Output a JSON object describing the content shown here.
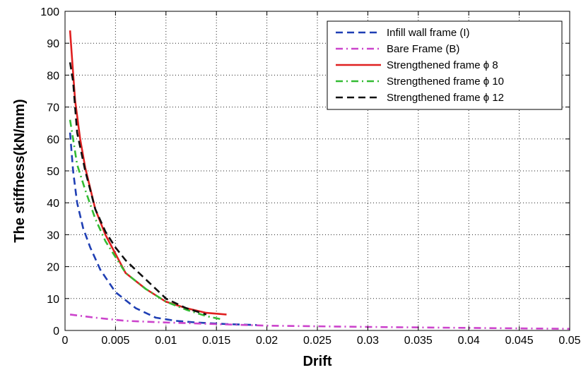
{
  "chart_data": {
    "type": "line",
    "title": "",
    "xlabel": "Drift",
    "ylabel": "The stiffness(kN/mm)",
    "xlim": [
      0,
      0.05
    ],
    "ylim": [
      0,
      100
    ],
    "x_ticks": [
      "0",
      "0.005",
      "0.01",
      "0.015",
      "0.02",
      "0.025",
      "0.03",
      "0.035",
      "0.04",
      "0.045",
      "0.05"
    ],
    "y_ticks": [
      "0",
      "10",
      "20",
      "30",
      "40",
      "50",
      "60",
      "70",
      "80",
      "90",
      "100"
    ],
    "grid": true,
    "legend_position": "top-right",
    "series": [
      {
        "name": "Infill wall frame (I)",
        "color": "#1f3fb4",
        "dash": "dash",
        "points": [
          [
            0.0005,
            62
          ],
          [
            0.0008,
            50
          ],
          [
            0.0012,
            40
          ],
          [
            0.0018,
            32
          ],
          [
            0.0025,
            26
          ],
          [
            0.0035,
            19
          ],
          [
            0.005,
            12
          ],
          [
            0.007,
            7
          ],
          [
            0.009,
            4
          ],
          [
            0.011,
            3
          ],
          [
            0.013,
            2.5
          ],
          [
            0.016,
            2
          ],
          [
            0.019,
            1.7
          ]
        ]
      },
      {
        "name": "Bare Frame (B)",
        "color": "#cc44cc",
        "dash": "dashdot",
        "points": [
          [
            0.0005,
            5
          ],
          [
            0.003,
            4
          ],
          [
            0.006,
            3
          ],
          [
            0.01,
            2.5
          ],
          [
            0.015,
            2
          ],
          [
            0.02,
            1.5
          ],
          [
            0.03,
            1.1
          ],
          [
            0.04,
            0.8
          ],
          [
            0.05,
            0.5
          ]
        ]
      },
      {
        "name": "Strengthened frame ϕ 8",
        "color": "#e02020",
        "dash": "solid",
        "points": [
          [
            0.0005,
            94
          ],
          [
            0.0007,
            85
          ],
          [
            0.001,
            72
          ],
          [
            0.0015,
            60
          ],
          [
            0.002,
            51
          ],
          [
            0.003,
            38
          ],
          [
            0.004,
            30
          ],
          [
            0.005,
            24
          ],
          [
            0.006,
            18
          ],
          [
            0.008,
            13
          ],
          [
            0.01,
            9
          ],
          [
            0.012,
            7
          ],
          [
            0.014,
            5.5
          ],
          [
            0.016,
            5
          ]
        ]
      },
      {
        "name": "Strengthened frame ϕ 10",
        "color": "#33bb33",
        "dash": "dashdot",
        "points": [
          [
            0.0005,
            66
          ],
          [
            0.0008,
            60
          ],
          [
            0.0012,
            52
          ],
          [
            0.002,
            44
          ],
          [
            0.003,
            35
          ],
          [
            0.004,
            28
          ],
          [
            0.005,
            23
          ],
          [
            0.006,
            18
          ],
          [
            0.008,
            13
          ],
          [
            0.01,
            9
          ],
          [
            0.012,
            6.5
          ],
          [
            0.014,
            4.5
          ],
          [
            0.0155,
            3.5
          ]
        ]
      },
      {
        "name": "Strengthened frame ϕ 12",
        "color": "#111111",
        "dash": "dash",
        "points": [
          [
            0.0005,
            84
          ],
          [
            0.0008,
            78
          ],
          [
            0.0012,
            62
          ],
          [
            0.002,
            50
          ],
          [
            0.003,
            38
          ],
          [
            0.004,
            31
          ],
          [
            0.005,
            26
          ],
          [
            0.006,
            22
          ],
          [
            0.008,
            16
          ],
          [
            0.01,
            10
          ],
          [
            0.012,
            7
          ],
          [
            0.014,
            5
          ]
        ]
      }
    ]
  }
}
